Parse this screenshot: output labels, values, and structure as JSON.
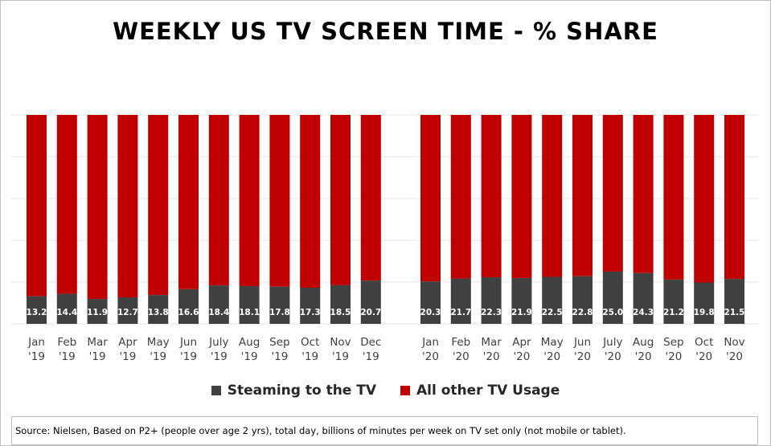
{
  "title": "WEEKLY US TV SCREEN TIME - % SHARE",
  "legend": {
    "streaming_label": "Steaming to the TV",
    "other_label": "All other TV Usage"
  },
  "source": "Source: Nielsen, Based on P2+ (people over age 2 yrs), total day, billions of minutes per week on TV set only (not mobile or tablet).",
  "colors": {
    "streaming": "#404040",
    "other": "#c00000"
  },
  "chart_data": {
    "type": "bar",
    "stacked": true,
    "percent_stacked": true,
    "title": "WEEKLY US TV SCREEN TIME - % SHARE",
    "ylim": [
      0,
      100
    ],
    "grid": true,
    "legend_position": "bottom",
    "groups": [
      {
        "categories": [
          "Jan\n'19",
          "Feb\n'19",
          "Mar\n'19",
          "Apr\n'19",
          "May\n'19",
          "Jun\n'19",
          "July\n'19",
          "Aug\n'19",
          "Sep\n'19",
          "Oct\n'19",
          "Nov\n'19",
          "Dec\n'19"
        ],
        "values": [
          13.2,
          14.4,
          11.9,
          12.7,
          13.8,
          16.6,
          18.4,
          18.1,
          17.8,
          17.3,
          18.5,
          20.7
        ]
      },
      {
        "categories": [
          "Jan\n'20",
          "Feb\n'20",
          "Mar\n'20",
          "Apr\n'20",
          "May\n'20",
          "Jun\n'20",
          "July\n'20",
          "Aug\n'20",
          "Sep\n'20",
          "Oct\n'20",
          "Nov\n'20"
        ],
        "values": [
          20.3,
          21.7,
          22.3,
          21.9,
          22.5,
          22.8,
          25.0,
          24.3,
          21.2,
          19.8,
          21.5
        ]
      }
    ],
    "series": [
      {
        "name": "Steaming to the TV",
        "color": "#404040"
      },
      {
        "name": "All other TV Usage",
        "color": "#c00000"
      }
    ]
  }
}
